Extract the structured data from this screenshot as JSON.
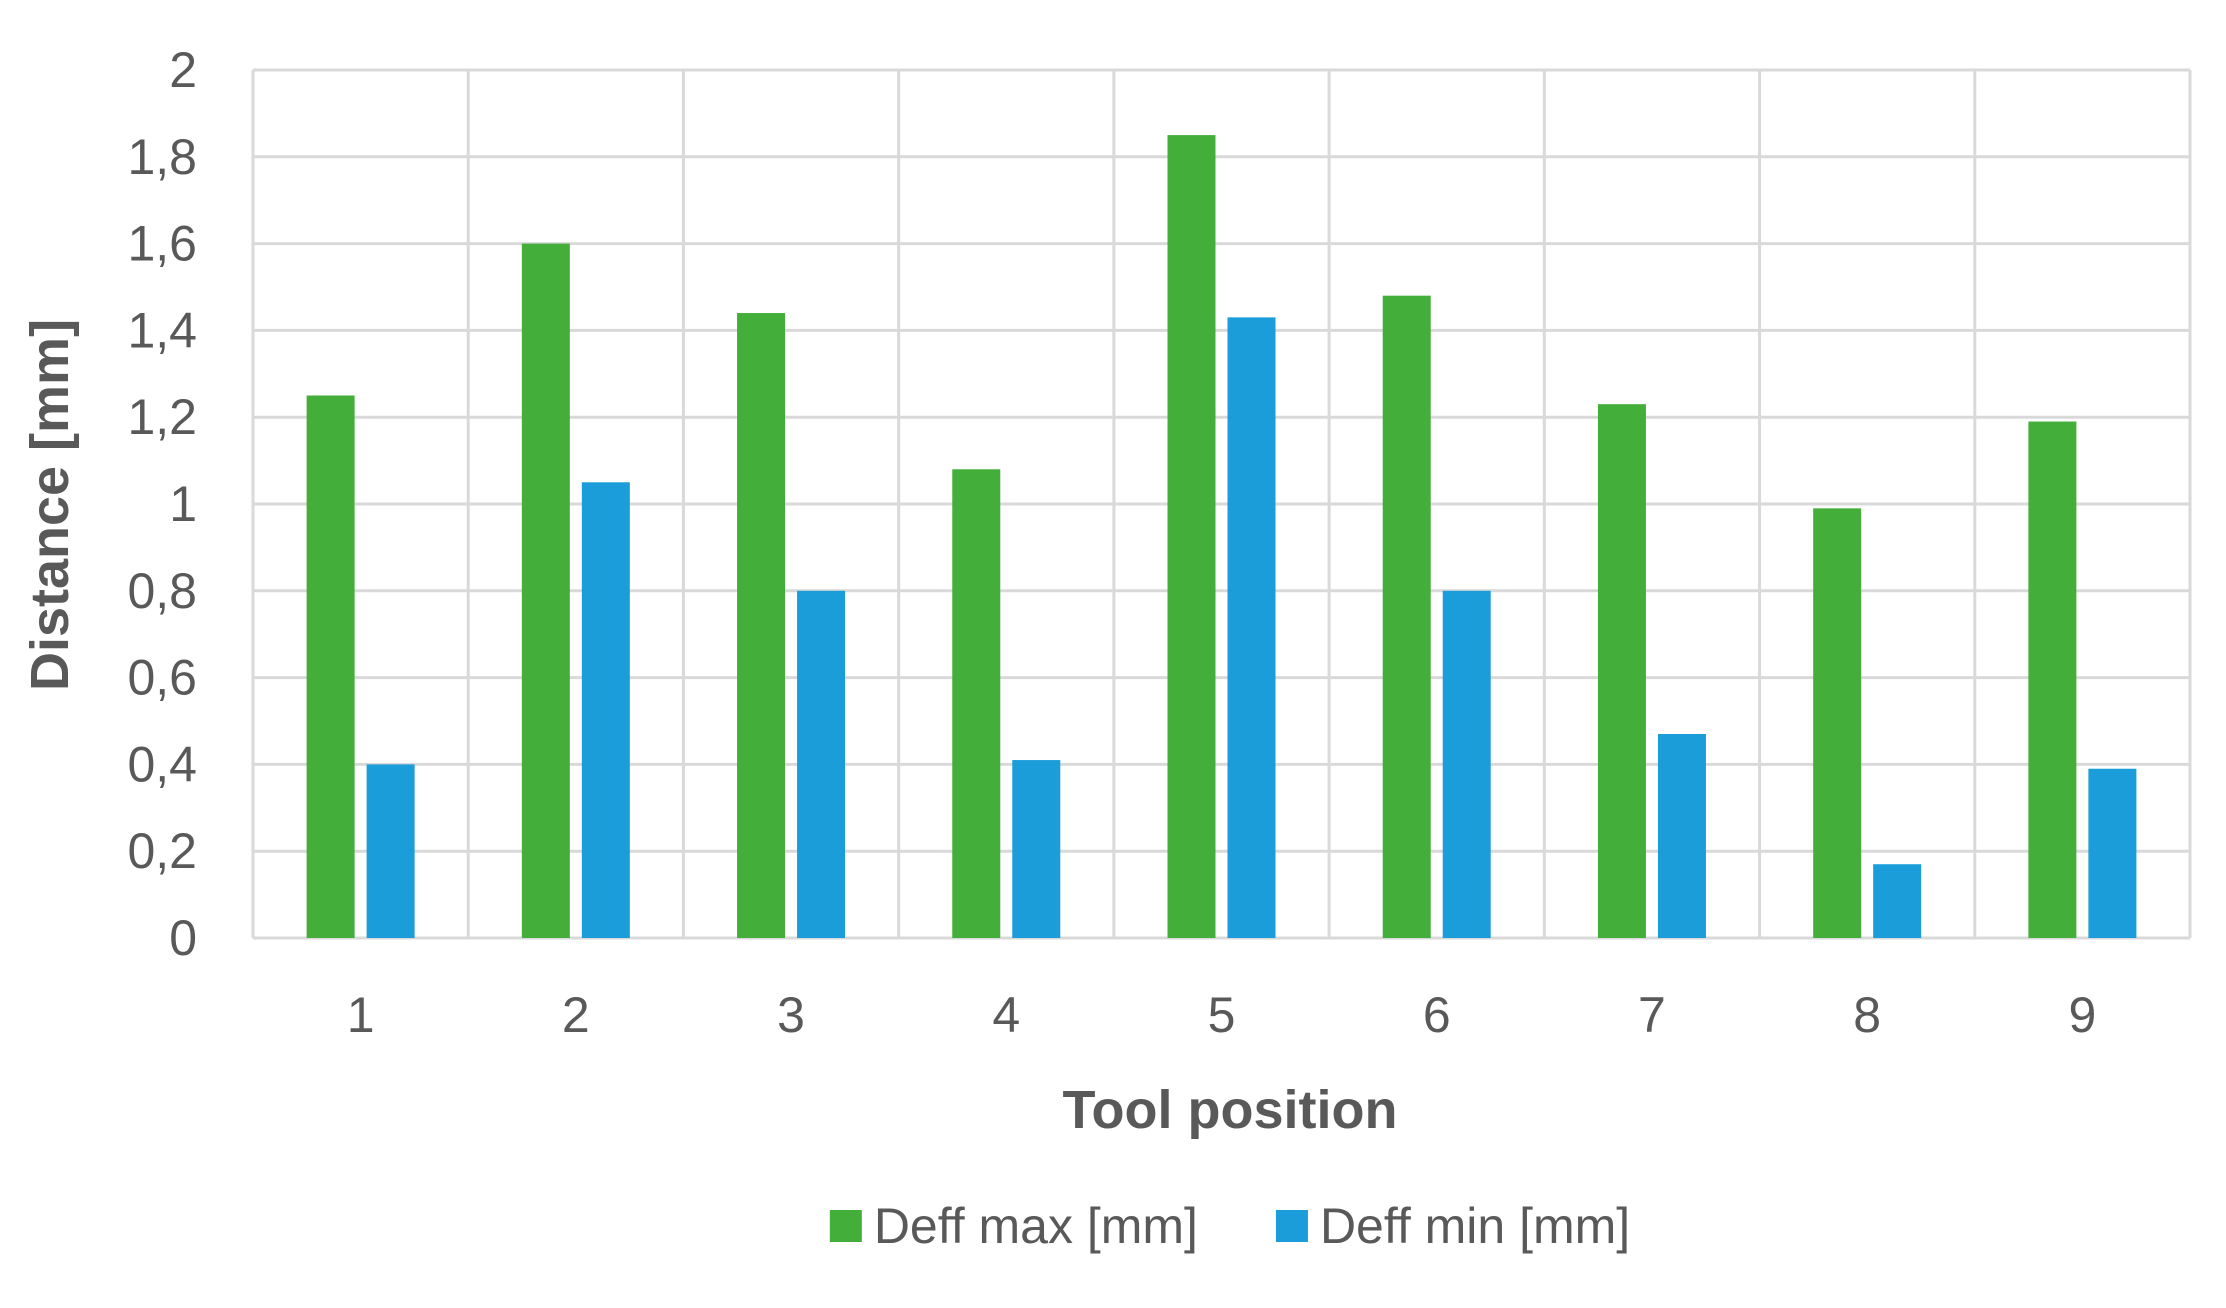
{
  "chart_data": {
    "type": "bar",
    "title": "",
    "xlabel": "Tool position",
    "ylabel": "Distance [mm]",
    "categories": [
      "1",
      "2",
      "3",
      "4",
      "5",
      "6",
      "7",
      "8",
      "9"
    ],
    "series": [
      {
        "name": "Deff max [mm]",
        "color": "#43AE3A",
        "values": [
          1.25,
          1.6,
          1.44,
          1.08,
          1.85,
          1.48,
          1.23,
          0.99,
          1.19
        ]
      },
      {
        "name": "Deff min [mm]",
        "color": "#1A9DD9",
        "values": [
          0.4,
          1.05,
          0.8,
          0.41,
          1.43,
          0.8,
          0.47,
          0.17,
          0.39
        ]
      }
    ],
    "ylim": [
      0,
      2
    ],
    "yticks": [
      0,
      0.2,
      0.4,
      0.6,
      0.8,
      1,
      1.2,
      1.4,
      1.6,
      1.8,
      2
    ],
    "ytick_labels": [
      "0",
      "0,2",
      "0,4",
      "0,6",
      "0,8",
      "1",
      "1,2",
      "1,4",
      "1,6",
      "1,8",
      "2"
    ],
    "grid": true,
    "legend": "bottom"
  }
}
